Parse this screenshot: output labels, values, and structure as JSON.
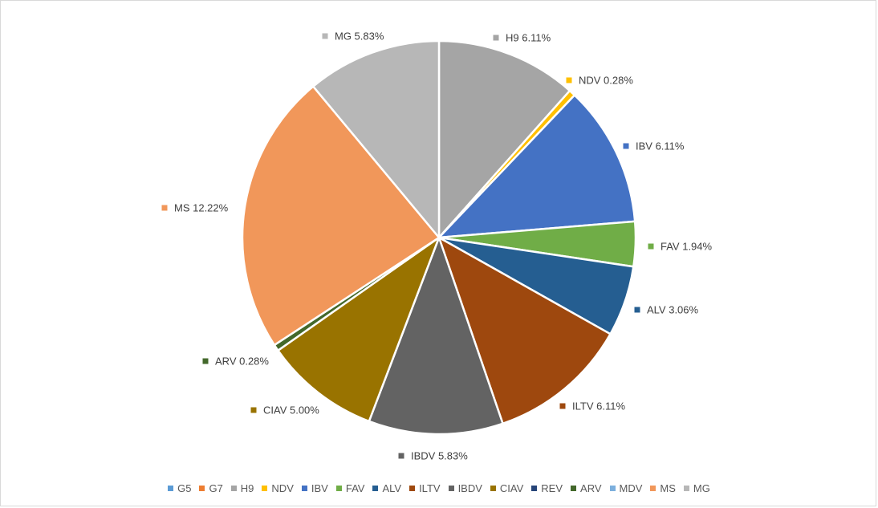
{
  "chart_data": {
    "type": "pie",
    "legend_position": "bottom",
    "categories": [
      "G5",
      "G7",
      "H9",
      "NDV",
      "IBV",
      "FAV",
      "ALV",
      "ILTV",
      "IBDV",
      "CIAV",
      "REV",
      "ARV",
      "MDV",
      "MS",
      "MG"
    ],
    "values": [
      0,
      0,
      6.11,
      0.28,
      6.11,
      1.94,
      3.06,
      6.11,
      5.83,
      5.0,
      0,
      0.28,
      0,
      12.22,
      5.83
    ],
    "colors": [
      "#5b9bd5",
      "#ed7d31",
      "#a5a5a5",
      "#ffc000",
      "#4472c4",
      "#70ad47",
      "#255e91",
      "#9e480e",
      "#636363",
      "#997300",
      "#264478",
      "#43682b",
      "#7cafdd",
      "#f1975a",
      "#b7b7b7"
    ],
    "data_labels": [
      "G5",
      "G7",
      "H9 6.11%",
      "NDV 0.28%",
      "IBV 6.11%",
      "FAV 1.94%",
      "ALV 3.06%",
      "ILTV 6.11%",
      "IBDV 5.83%",
      "CIAV 5.00%",
      "REV",
      "ARV 0.28%",
      "MDV",
      "MS 12.22%",
      "MG 5.83%"
    ],
    "legend": [
      "G5",
      "G7",
      "H9",
      "NDV",
      "IBV",
      "FAV",
      "ALV",
      "ILTV",
      "IBDV",
      "CIAV",
      "REV",
      "ARV",
      "MDV",
      "MS",
      "MG"
    ]
  }
}
